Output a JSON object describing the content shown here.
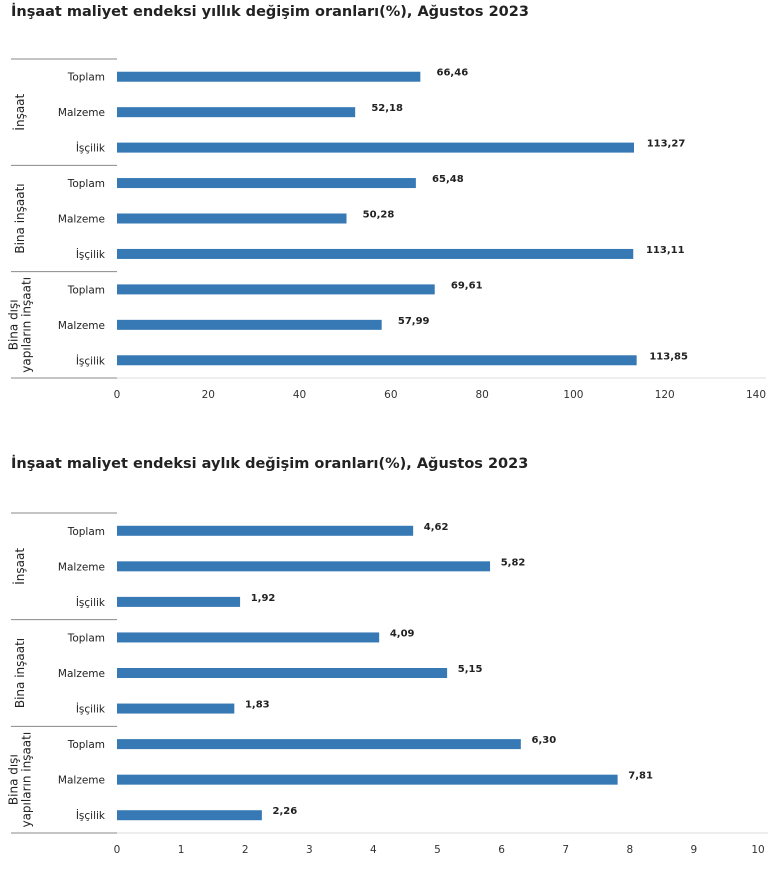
{
  "chart_data": [
    {
      "type": "bar",
      "orientation": "horizontal",
      "title": "İnşaat maliyet endeksi yıllık değişim oranları(%), Ağustos 2023",
      "groups": [
        {
          "label": "İnşaat",
          "items": [
            {
              "category": "Toplam",
              "value": 66.46,
              "label": "66,46"
            },
            {
              "category": "Malzeme",
              "value": 52.18,
              "label": "52,18"
            },
            {
              "category": "İşçilik",
              "value": 113.27,
              "label": "113,27"
            }
          ]
        },
        {
          "label": "Bina inşaatı",
          "items": [
            {
              "category": "Toplam",
              "value": 65.48,
              "label": "65,48"
            },
            {
              "category": "Malzeme",
              "value": 50.28,
              "label": "50,28"
            },
            {
              "category": "İşçilik",
              "value": 113.11,
              "label": "113,11"
            }
          ]
        },
        {
          "label": "Bina dışı yapıların inşaatı",
          "label_lines": [
            "Bina dışı",
            "yapıların inşaatı"
          ],
          "items": [
            {
              "category": "Toplam",
              "value": 69.61,
              "label": "69,61"
            },
            {
              "category": "Malzeme",
              "value": 57.99,
              "label": "57,99"
            },
            {
              "category": "İşçilik",
              "value": 113.85,
              "label": "113,85"
            }
          ]
        }
      ],
      "xlim": [
        0,
        140
      ],
      "xticks": [
        0,
        20,
        40,
        60,
        80,
        100,
        120,
        140
      ],
      "bar_color": "#3679b4"
    },
    {
      "type": "bar",
      "orientation": "horizontal",
      "title": "İnşaat maliyet endeksi aylık değişim oranları(%), Ağustos 2023",
      "groups": [
        {
          "label": "İnşaat",
          "items": [
            {
              "category": "Toplam",
              "value": 4.62,
              "label": "4,62"
            },
            {
              "category": "Malzeme",
              "value": 5.82,
              "label": "5,82"
            },
            {
              "category": "İşçilik",
              "value": 1.92,
              "label": "1,92"
            }
          ]
        },
        {
          "label": "Bina inşaatı",
          "items": [
            {
              "category": "Toplam",
              "value": 4.09,
              "label": "4,09"
            },
            {
              "category": "Malzeme",
              "value": 5.15,
              "label": "5,15"
            },
            {
              "category": "İşçilik",
              "value": 1.83,
              "label": "1,83"
            }
          ]
        },
        {
          "label": "Bina dışı yapıların inşaatı",
          "label_lines": [
            "Bina dışı",
            "yapıların inşaatı"
          ],
          "items": [
            {
              "category": "Toplam",
              "value": 6.3,
              "label": "6,30"
            },
            {
              "category": "Malzeme",
              "value": 7.81,
              "label": "7,81"
            },
            {
              "category": "İşçilik",
              "value": 2.26,
              "label": "2,26"
            }
          ]
        }
      ],
      "xlim": [
        0,
        10
      ],
      "xticks": [
        0,
        1,
        2,
        3,
        4,
        5,
        6,
        7,
        8,
        9,
        10
      ],
      "bar_color": "#3679b4"
    }
  ]
}
